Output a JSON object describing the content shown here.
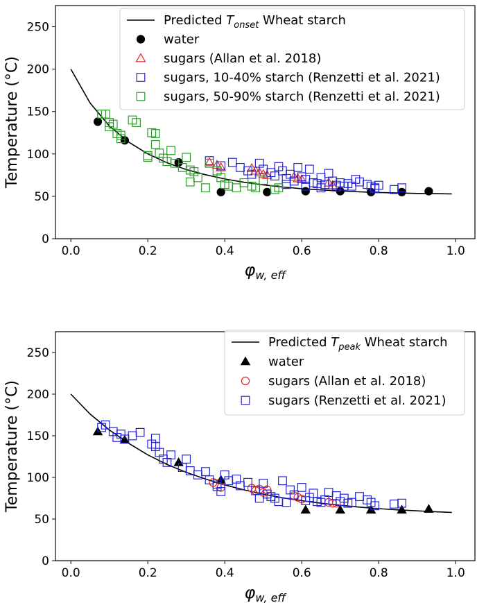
{
  "chart_data": [
    {
      "type": "scatter",
      "id": "top",
      "xlabel_symbol": "φ",
      "xlabel_sub": "w, eff",
      "ylabel": "Temperature (°C)",
      "xlim": [
        -0.04,
        1.05
      ],
      "ylim": [
        0,
        275
      ],
      "xticks": [
        0.0,
        0.2,
        0.4,
        0.6,
        0.8,
        1.0
      ],
      "xtick_labels": [
        "0.0",
        "0.2",
        "0.4",
        "0.6",
        "0.8",
        "1.0"
      ],
      "yticks": [
        0,
        50,
        100,
        150,
        200,
        250
      ],
      "ytick_labels": [
        "0",
        "50",
        "100",
        "150",
        "200",
        "250"
      ],
      "legend_position": "top-right",
      "curve": {
        "label_prefix": "Predicted ",
        "label_symbol": "T",
        "label_sub": "onset",
        "label_suffix": " Wheat starch",
        "color": "#000000",
        "x": [
          0.0,
          0.05,
          0.1,
          0.15,
          0.2,
          0.25,
          0.3,
          0.35,
          0.4,
          0.45,
          0.5,
          0.55,
          0.6,
          0.65,
          0.7,
          0.75,
          0.8,
          0.85,
          0.9,
          0.95,
          0.99
        ],
        "y": [
          200,
          160,
          133,
          114,
          100,
          89.5,
          81.5,
          75.5,
          70.5,
          66.5,
          63.5,
          61,
          59,
          57.5,
          56.3,
          55.3,
          54.5,
          53.9,
          53.4,
          53.1,
          52.9
        ]
      },
      "series": [
        {
          "name": "water",
          "marker": "circle-filled",
          "color": "#000000",
          "x": [
            0.07,
            0.14,
            0.28,
            0.39,
            0.51,
            0.61,
            0.7,
            0.78,
            0.86,
            0.93
          ],
          "y": [
            138,
            116,
            90,
            55,
            55,
            56,
            56,
            55,
            55,
            56
          ]
        },
        {
          "name": "sugars (Allan et al. 2018)",
          "marker": "triangle-open",
          "color": "#e8251f",
          "x": [
            0.36,
            0.38,
            0.39,
            0.47,
            0.48,
            0.49,
            0.5,
            0.51,
            0.58,
            0.59,
            0.6,
            0.67,
            0.68
          ],
          "y": [
            90,
            87,
            84,
            83,
            80,
            78,
            76,
            75,
            73,
            71,
            70,
            66,
            63
          ]
        },
        {
          "name": "sugars, 10-40% starch (Renzetti et al. 2021)",
          "marker": "square-open",
          "color": "#2323d6",
          "x": [
            0.36,
            0.39,
            0.42,
            0.44,
            0.46,
            0.47,
            0.49,
            0.5,
            0.52,
            0.53,
            0.54,
            0.55,
            0.56,
            0.57,
            0.58,
            0.59,
            0.6,
            0.61,
            0.62,
            0.63,
            0.64,
            0.65,
            0.66,
            0.67,
            0.68,
            0.69,
            0.7,
            0.71,
            0.72,
            0.74,
            0.75,
            0.77,
            0.78,
            0.79,
            0.8,
            0.84,
            0.86,
            0.56,
            0.61,
            0.65,
            0.69,
            0.73,
            0.79
          ],
          "y": [
            92,
            86,
            90,
            84,
            80,
            76,
            89,
            82,
            78,
            74,
            85,
            80,
            71,
            76,
            68,
            84,
            73,
            70,
            82,
            66,
            65,
            72,
            64,
            77,
            68,
            63,
            66,
            62,
            65,
            70,
            67,
            64,
            62,
            60,
            63,
            58,
            60,
            64,
            62,
            60,
            61,
            62,
            59
          ]
        },
        {
          "name": "sugars, 50-90% starch (Renzetti et al. 2021)",
          "marker": "square-open",
          "color": "#2b992b",
          "x": [
            0.08,
            0.09,
            0.1,
            0.11,
            0.12,
            0.13,
            0.13,
            0.16,
            0.17,
            0.2,
            0.21,
            0.22,
            0.22,
            0.23,
            0.24,
            0.25,
            0.26,
            0.27,
            0.29,
            0.3,
            0.31,
            0.32,
            0.33,
            0.35,
            0.36,
            0.38,
            0.39,
            0.4,
            0.41,
            0.43,
            0.45,
            0.47,
            0.48,
            0.5,
            0.53,
            0.54,
            0.1,
            0.2,
            0.31
          ],
          "y": [
            147,
            147,
            137,
            135,
            124,
            122,
            118,
            140,
            137,
            96,
            125,
            124,
            111,
            101,
            95,
            91,
            104,
            89,
            84,
            96,
            81,
            79,
            72,
            60,
            89,
            80,
            72,
            64,
            62,
            60,
            66,
            62,
            60,
            69,
            58,
            60,
            132,
            98,
            67
          ]
        }
      ]
    },
    {
      "type": "scatter",
      "id": "bottom",
      "xlabel_symbol": "φ",
      "xlabel_sub": "w, eff",
      "ylabel": "Temperature (°C)",
      "xlim": [
        -0.04,
        1.05
      ],
      "ylim": [
        0,
        275
      ],
      "xticks": [
        0.0,
        0.2,
        0.4,
        0.6,
        0.8,
        1.0
      ],
      "xtick_labels": [
        "0.0",
        "0.2",
        "0.4",
        "0.6",
        "0.8",
        "1.0"
      ],
      "yticks": [
        0,
        50,
        100,
        150,
        200,
        250
      ],
      "ytick_labels": [
        "0",
        "50",
        "100",
        "150",
        "200",
        "250"
      ],
      "legend_position": "top-right",
      "curve": {
        "label_prefix": "Predicted ",
        "label_symbol": "T",
        "label_sub": "peak",
        "label_suffix": " Wheat starch",
        "color": "#000000",
        "x": [
          0.0,
          0.05,
          0.1,
          0.15,
          0.2,
          0.25,
          0.3,
          0.35,
          0.4,
          0.45,
          0.5,
          0.55,
          0.6,
          0.65,
          0.7,
          0.75,
          0.8,
          0.85,
          0.9,
          0.95,
          0.99
        ],
        "y": [
          200,
          176,
          157,
          141,
          127,
          115.5,
          106,
          98,
          91,
          85,
          80,
          75.5,
          72,
          69,
          66.5,
          64.3,
          62.5,
          61,
          59.8,
          58.7,
          58
        ]
      },
      "series": [
        {
          "name": "water",
          "marker": "triangle-filled",
          "color": "#000000",
          "x": [
            0.07,
            0.14,
            0.28,
            0.39,
            0.61,
            0.7,
            0.78,
            0.86,
            0.93
          ],
          "y": [
            155,
            145,
            118,
            97,
            61,
            61,
            61,
            61,
            62
          ]
        },
        {
          "name": "sugars (Allan et al. 2018)",
          "marker": "circle-open",
          "color": "#e8251f",
          "x": [
            0.37,
            0.39,
            0.47,
            0.48,
            0.49,
            0.5,
            0.51,
            0.58,
            0.59,
            0.6,
            0.67,
            0.68,
            0.69
          ],
          "y": [
            94,
            88,
            87,
            84,
            86,
            82,
            85,
            78,
            76,
            74,
            70,
            69,
            69
          ]
        },
        {
          "name": "sugars (Renzetti et al. 2021)",
          "marker": "square-open",
          "color": "#2323d6",
          "x": [
            0.08,
            0.09,
            0.11,
            0.12,
            0.13,
            0.14,
            0.16,
            0.18,
            0.21,
            0.22,
            0.23,
            0.24,
            0.25,
            0.26,
            0.29,
            0.3,
            0.31,
            0.33,
            0.35,
            0.36,
            0.38,
            0.39,
            0.4,
            0.41,
            0.43,
            0.44,
            0.46,
            0.48,
            0.49,
            0.5,
            0.51,
            0.53,
            0.54,
            0.55,
            0.56,
            0.57,
            0.58,
            0.6,
            0.61,
            0.62,
            0.63,
            0.65,
            0.66,
            0.67,
            0.69,
            0.7,
            0.71,
            0.73,
            0.75,
            0.77,
            0.78,
            0.79,
            0.84,
            0.86,
            0.22,
            0.38,
            0.52,
            0.64,
            0.72
          ],
          "y": [
            160,
            163,
            155,
            148,
            152,
            146,
            150,
            154,
            140,
            147,
            130,
            122,
            118,
            127,
            112,
            122,
            108,
            103,
            107,
            97,
            92,
            83,
            103,
            96,
            98,
            90,
            94,
            84,
            75,
            93,
            80,
            75,
            71,
            96,
            70,
            85,
            79,
            88,
            72,
            76,
            81,
            70,
            73,
            82,
            78,
            71,
            75,
            70,
            77,
            73,
            70,
            66,
            68,
            69,
            137,
            89,
            77,
            71,
            69
          ]
        }
      ]
    }
  ]
}
